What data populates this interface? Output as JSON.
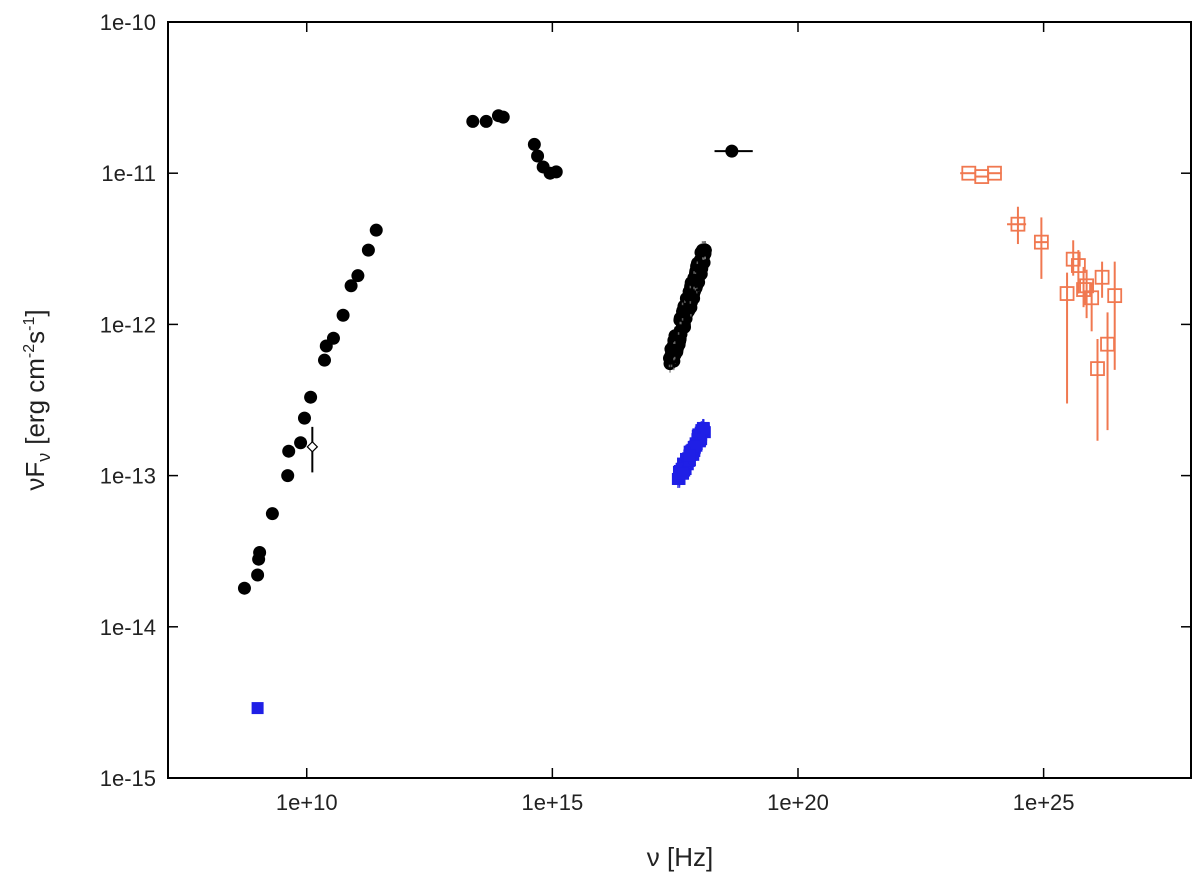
{
  "chart_data": {
    "type": "scatter",
    "title": "",
    "xlabel": "ν [Hz]",
    "ylabel_main": "νF",
    "ylabel_sub": "ν",
    "ylabel_bracket": "[erg cm",
    "ylabel_exp1": "-2",
    "ylabel_s": "s",
    "ylabel_exp2": "-1",
    "ylabel_close": "]",
    "x_scale": "log",
    "y_scale": "log",
    "xlim": [
      15000000.0,
      1e+28
    ],
    "ylim": [
      1e-15,
      1e-10
    ],
    "x_ticks": [
      {
        "value": 10000000000.0,
        "label": "1e+10"
      },
      {
        "value": 1000000000000000.0,
        "label": "1e+15"
      },
      {
        "value": 1e+20,
        "label": "1e+20"
      },
      {
        "value": 1e+25,
        "label": "1e+25"
      }
    ],
    "y_ticks": [
      {
        "value": 1e-15,
        "label": "1e-15"
      },
      {
        "value": 1e-14,
        "label": "1e-14"
      },
      {
        "value": 1e-13,
        "label": "1e-13"
      },
      {
        "value": 1e-12,
        "label": "1e-12"
      },
      {
        "value": 1e-11,
        "label": "1e-11"
      },
      {
        "value": 1e-10,
        "label": "1e-10"
      }
    ],
    "grid": false,
    "legend": "none",
    "series": [
      {
        "color": "#000000",
        "marker": "filled-circle",
        "points": [
          {
            "x": 540000000.0,
            "y": 1.8e-14
          },
          {
            "x": 1000000000.0,
            "y": 2.2e-14
          },
          {
            "x": 1050000000.0,
            "y": 2.8e-14
          },
          {
            "x": 1100000000.0,
            "y": 3.1e-14
          },
          {
            "x": 2000000000.0,
            "y": 5.6e-14
          },
          {
            "x": 4100000000.0,
            "y": 1e-13
          },
          {
            "x": 4300000000.0,
            "y": 1.45e-13
          },
          {
            "x": 7500000000.0,
            "y": 1.65e-13
          },
          {
            "x": 9000000000.0,
            "y": 2.4e-13
          },
          {
            "x": 12000000000.0,
            "y": 3.3e-13
          },
          {
            "x": 23000000000.0,
            "y": 5.8e-13
          },
          {
            "x": 25000000000.0,
            "y": 7.2e-13
          },
          {
            "x": 35000000000.0,
            "y": 8.1e-13
          },
          {
            "x": 55000000000.0,
            "y": 1.15e-12
          },
          {
            "x": 80000000000.0,
            "y": 1.8e-12
          },
          {
            "x": 110000000000.0,
            "y": 2.1e-12
          },
          {
            "x": 180000000000.0,
            "y": 3.1e-12
          },
          {
            "x": 260000000000.0,
            "y": 4.2e-12
          },
          {
            "x": 24000000000000.0,
            "y": 2.2e-11
          },
          {
            "x": 45000000000000.0,
            "y": 2.2e-11
          },
          {
            "x": 80000000000000.0,
            "y": 2.4e-11
          },
          {
            "x": 100000000000000.0,
            "y": 2.35e-11
          },
          {
            "x": 430000000000000.0,
            "y": 1.55e-11
          },
          {
            "x": 500000000000000.0,
            "y": 1.3e-11
          },
          {
            "x": 650000000000000.0,
            "y": 1.1e-11
          },
          {
            "x": 900000000000000.0,
            "y": 1e-11
          },
          {
            "x": 1200000000000000.0,
            "y": 1.02e-11
          }
        ]
      },
      {
        "color": "#000000",
        "marker": "open-diamond",
        "points": [
          {
            "x": 13000000000.0,
            "y": 1.55e-13,
            "y_err_low": 1.05e-13,
            "y_err_high": 2.1e-13
          }
        ]
      },
      {
        "color": "#000000",
        "marker": "filled-circle",
        "points": [
          {
            "x": 4.5e+18,
            "y": 1.4e-11,
            "x_err_low": 2e+18,
            "x_err_high": 1.2e+19
          }
        ]
      },
      {
        "color": "#000000",
        "marker": "filled-circle-dense",
        "errorbar_color": "#777777",
        "x_range": [
          2.4e+17,
          1.3e+18
        ],
        "y_range": [
          5.5e-13,
          3.1e-12
        ]
      },
      {
        "color": "#1f1fe6",
        "marker": "filled-square-dense",
        "x_range": [
          3.5e+17,
          1.3e+18
        ],
        "y_range": [
          9.5e-14,
          2.1e-13
        ]
      },
      {
        "color": "#1f1fe6",
        "marker": "filled-square",
        "points": [
          {
            "x": 1000000000.0,
            "y": 2.9e-15
          }
        ]
      },
      {
        "color": "#f07850",
        "marker": "open-square-crosshair",
        "points": [
          {
            "x": 3e+23,
            "y": 1e-11,
            "x_err_low": 2e+23,
            "x_err_high": 4e+23
          },
          {
            "x": 5.5e+23,
            "y": 9.5e-12,
            "x_err_low": 4e+23,
            "x_err_high": 7.5e+23
          },
          {
            "x": 1e+24,
            "y": 1e-11,
            "x_err_low": 7.5e+23,
            "x_err_high": 1.4e+24
          },
          {
            "x": 3e+24,
            "y": 4.6e-12,
            "x_err_low": 1.8e+24,
            "x_err_high": 4.4e+24,
            "y_err_low": 3.4e-12,
            "y_err_high": 6e-12
          },
          {
            "x": 9e+24,
            "y": 3.5e-12,
            "x_err_low": 6.5e+24,
            "x_err_high": 1.2e+25,
            "y_err_low": 2e-12,
            "y_err_high": 5.1e-12
          },
          {
            "x": 3e+25,
            "y": 1.6e-12,
            "y_err_low": 3e-13,
            "y_err_high": 2.2e-12
          },
          {
            "x": 4e+25,
            "y": 2.7e-12,
            "y_err_low": 2.1e-12,
            "y_err_high": 3.6e-12
          },
          {
            "x": 5.1e+25,
            "y": 2.45e-12,
            "y_err_low": 1.6e-12,
            "y_err_high": 3.1e-12
          },
          {
            "x": 6.5e+25,
            "y": 1.7e-12,
            "y_err_low": 1.3e-12,
            "y_err_high": 2.4e-12
          },
          {
            "x": 7.5e+25,
            "y": 1.8e-12,
            "y_err_low": 1.1e-12,
            "y_err_high": 2.3e-12
          },
          {
            "x": 9.5e+25,
            "y": 1.5e-12,
            "y_err_low": 9e-13,
            "y_err_high": 1.9e-12
          },
          {
            "x": 1.25e+26,
            "y": 5.1e-13,
            "y_err_low": 1.7e-13,
            "y_err_high": 8e-13
          },
          {
            "x": 1.55e+26,
            "y": 2.05e-12,
            "y_err_low": 1.5e-12,
            "y_err_high": 2.6e-12
          },
          {
            "x": 2e+26,
            "y": 7.4e-13,
            "y_err_low": 2e-13,
            "y_err_high": 1.2e-12
          },
          {
            "x": 2.8e+26,
            "y": 1.55e-12,
            "y_err_low": 5e-13,
            "y_err_high": 2.6e-12
          }
        ]
      }
    ]
  }
}
